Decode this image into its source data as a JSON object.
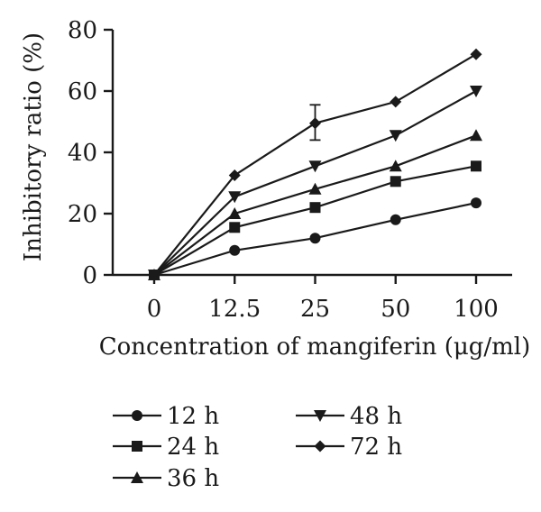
{
  "chart_data": {
    "type": "line",
    "title": "",
    "xlabel": "Concentration of mangiferin (μg/ml)",
    "ylabel": "Inhibitory ratio (%)",
    "categories": [
      "0",
      "12.5",
      "25",
      "50",
      "100"
    ],
    "ylim": [
      0,
      80
    ],
    "yticks": [
      0,
      20,
      40,
      60,
      80
    ],
    "grid": false,
    "legend_position": "bottom",
    "series": [
      {
        "name": "12 h",
        "marker": "circle",
        "values": [
          0,
          8,
          12,
          18,
          23.5
        ]
      },
      {
        "name": "24 h",
        "marker": "square",
        "values": [
          0,
          15.5,
          22,
          30.5,
          35.5
        ]
      },
      {
        "name": "36 h",
        "marker": "triangle-up",
        "values": [
          0,
          20,
          28,
          35.5,
          45.5
        ]
      },
      {
        "name": "48 h",
        "marker": "triangle-down",
        "values": [
          0,
          25.5,
          35.5,
          45.5,
          60
        ]
      },
      {
        "name": "72 h",
        "marker": "diamond",
        "values": [
          0,
          32.5,
          49.5,
          56.5,
          72
        ]
      }
    ],
    "error_bars": [
      {
        "series": "72 h",
        "category": "25",
        "low": 44,
        "high": 55.5
      }
    ]
  }
}
